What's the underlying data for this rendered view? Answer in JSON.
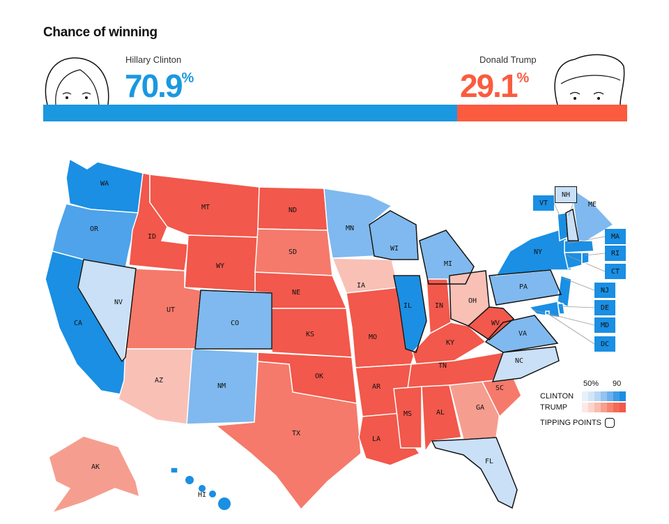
{
  "header": {
    "title": "Chance of winning",
    "clinton": {
      "name": "Hillary Clinton",
      "value": "70.9",
      "unit": "%",
      "probability": 70.9,
      "color": "#1a98e0"
    },
    "trump": {
      "name": "Donald Trump",
      "value": "29.1",
      "unit": "%",
      "probability": 29.1,
      "color": "#fb5b3f"
    }
  },
  "colors": {
    "D4": "#1a8fe3",
    "D3": "#4ea3ea",
    "D2": "#7fb9ef",
    "D1": "#c9e0f7",
    "R1": "#f9c0b6",
    "R2": "#f59e8f",
    "R3": "#f57a6b",
    "R4": "#f2584b"
  },
  "states": [
    {
      "abbr": "WA",
      "lean": "D4"
    },
    {
      "abbr": "OR",
      "lean": "D3"
    },
    {
      "abbr": "CA",
      "lean": "D4"
    },
    {
      "abbr": "NV",
      "lean": "D1",
      "tipping": true
    },
    {
      "abbr": "ID",
      "lean": "R4"
    },
    {
      "abbr": "MT",
      "lean": "R4"
    },
    {
      "abbr": "WY",
      "lean": "R4"
    },
    {
      "abbr": "UT",
      "lean": "R3"
    },
    {
      "abbr": "AZ",
      "lean": "R1"
    },
    {
      "abbr": "CO",
      "lean": "D2",
      "tipping": true
    },
    {
      "abbr": "NM",
      "lean": "D2"
    },
    {
      "abbr": "ND",
      "lean": "R4"
    },
    {
      "abbr": "SD",
      "lean": "R3"
    },
    {
      "abbr": "NE",
      "lean": "R4"
    },
    {
      "abbr": "KS",
      "lean": "R4"
    },
    {
      "abbr": "OK",
      "lean": "R4"
    },
    {
      "abbr": "TX",
      "lean": "R3"
    },
    {
      "abbr": "MN",
      "lean": "D2"
    },
    {
      "abbr": "IA",
      "lean": "R1"
    },
    {
      "abbr": "MO",
      "lean": "R4"
    },
    {
      "abbr": "AR",
      "lean": "R4"
    },
    {
      "abbr": "LA",
      "lean": "R4"
    },
    {
      "abbr": "WI",
      "lean": "D2",
      "tipping": true
    },
    {
      "abbr": "IL",
      "lean": "D4",
      "tipping": true
    },
    {
      "abbr": "MI",
      "lean": "D2",
      "tipping": true
    },
    {
      "abbr": "IN",
      "lean": "R4"
    },
    {
      "abbr": "OH",
      "lean": "R1",
      "tipping": true
    },
    {
      "abbr": "KY",
      "lean": "R4"
    },
    {
      "abbr": "TN",
      "lean": "R4"
    },
    {
      "abbr": "MS",
      "lean": "R4"
    },
    {
      "abbr": "AL",
      "lean": "R4"
    },
    {
      "abbr": "GA",
      "lean": "R2"
    },
    {
      "abbr": "FL",
      "lean": "D1",
      "tipping": true
    },
    {
      "abbr": "SC",
      "lean": "R3"
    },
    {
      "abbr": "NC",
      "lean": "D1",
      "tipping": true
    },
    {
      "abbr": "VA",
      "lean": "D2",
      "tipping": true
    },
    {
      "abbr": "WV",
      "lean": "R4",
      "tipping": true
    },
    {
      "abbr": "PA",
      "lean": "D2",
      "tipping": true
    },
    {
      "abbr": "NY",
      "lean": "D4"
    },
    {
      "abbr": "NJ",
      "lean": "D4"
    },
    {
      "abbr": "VT",
      "lean": "D4"
    },
    {
      "abbr": "NH",
      "lean": "D1",
      "tipping": true
    },
    {
      "abbr": "ME",
      "lean": "D2"
    },
    {
      "abbr": "MA",
      "lean": "D4"
    },
    {
      "abbr": "CT",
      "lean": "D4"
    },
    {
      "abbr": "RI",
      "lean": "D4"
    },
    {
      "abbr": "DE",
      "lean": "D4"
    },
    {
      "abbr": "MD",
      "lean": "D4"
    },
    {
      "abbr": "DC",
      "lean": "D4"
    },
    {
      "abbr": "AK",
      "lean": "R2"
    },
    {
      "abbr": "HI",
      "lean": "D4"
    }
  ],
  "legend": {
    "low_label": "50%",
    "high_label": "90",
    "clinton_label": "CLINTON",
    "trump_label": "TRUMP",
    "tipping_label": "TIPPING POINTS",
    "clinton_scale": [
      "#e6f1fb",
      "#d2e6f8",
      "#b7d7f4",
      "#93c3f0",
      "#6cb0ec",
      "#3e9be6",
      "#1a8fe3"
    ],
    "trump_scale": [
      "#fde9e5",
      "#fbd4cc",
      "#f9bcae",
      "#f79f8e",
      "#f5836f",
      "#f36a57",
      "#f2584b"
    ]
  }
}
